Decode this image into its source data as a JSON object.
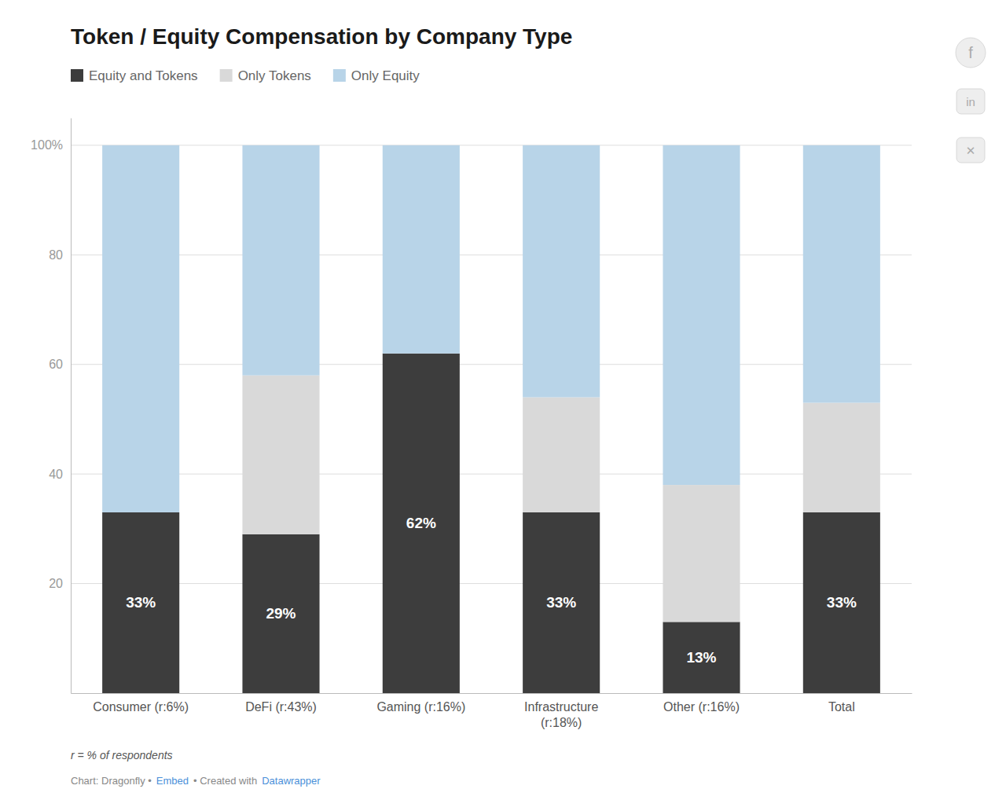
{
  "chart_data": {
    "type": "bar",
    "title": "Token / Equity Compensation by Company Type",
    "categories": [
      "Consumer (r:6%)",
      "DeFi (r:43%)",
      "Gaming (r:16%)",
      "Infrastructure\n(r:18%)",
      "Other (r:16%)",
      "Total"
    ],
    "series": [
      {
        "name": "Equity and Tokens",
        "color": "#3d3d3d",
        "values": [
          33,
          29,
          62,
          33,
          13,
          33
        ],
        "data_labels": true,
        "value_labels": [
          "33%",
          "29%",
          "62%",
          "33%",
          "13%",
          "33%"
        ]
      },
      {
        "name": "Only Tokens",
        "color": "#d9d9d9",
        "values": [
          0,
          29,
          0,
          21,
          25,
          20
        ]
      },
      {
        "name": "Only Equity",
        "color": "#b8d4e8",
        "values": [
          67,
          42,
          38,
          46,
          62,
          47
        ]
      }
    ],
    "stacked": true,
    "ylim": [
      0,
      105
    ],
    "yticks": [
      20,
      40,
      60,
      80,
      {
        "value": 100,
        "label": "100%"
      }
    ],
    "grid": true,
    "legend": "top",
    "annotations": [
      "r = % of respondents",
      "Chart: Dragonfly •",
      "Embed",
      "• Created with",
      "Datawrapper",
      "f",
      "in",
      "✕"
    ]
  }
}
